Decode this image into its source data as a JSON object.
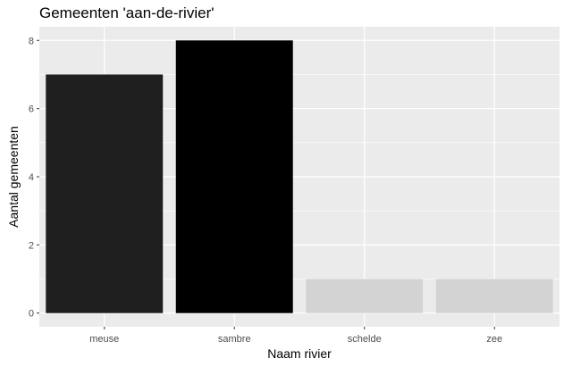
{
  "chart_data": {
    "type": "bar",
    "title": "Gemeenten 'aan-de-rivier'",
    "xlabel": "Naam rivier",
    "ylabel": "Aantal gemeenten",
    "categories": [
      "meuse",
      "sambre",
      "schelde",
      "zee"
    ],
    "values": [
      7,
      8,
      1,
      1
    ],
    "bar_colors": [
      "#1f1f1f",
      "#000000",
      "#d3d3d3",
      "#d3d3d3"
    ],
    "yticks": [
      0,
      2,
      4,
      6,
      8
    ],
    "ylim": [
      -0.4,
      8.4
    ],
    "grid": true,
    "panel_background": "#ebebeb",
    "grid_color": "#ffffff"
  }
}
